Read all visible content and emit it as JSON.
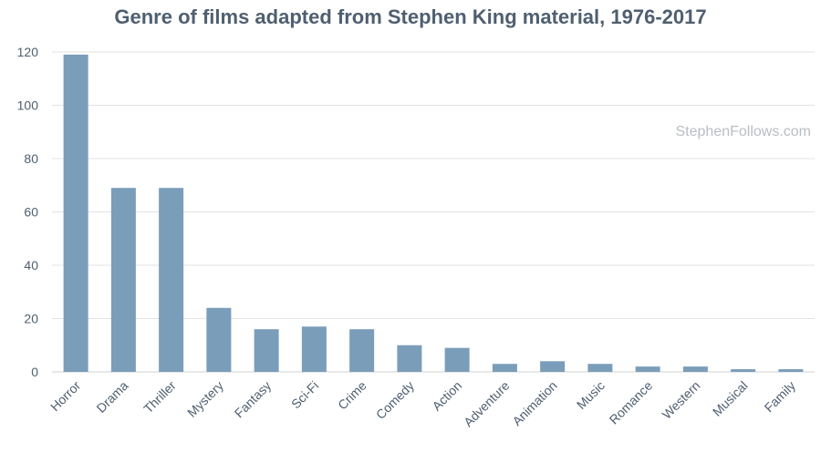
{
  "chart_data": {
    "type": "bar",
    "title": "Genre of films adapted from Stephen King material, 1976-2017",
    "watermark": "StephenFollows.com",
    "xlabel": "",
    "ylabel": "",
    "ylim": [
      0,
      120
    ],
    "yticks": [
      0,
      20,
      40,
      60,
      80,
      100,
      120
    ],
    "grid": true,
    "legend": "none",
    "bar_color": "#7a9dba",
    "categories": [
      "Horror",
      "Drama",
      "Thriller",
      "Mystery",
      "Fantasy",
      "Sci-Fi",
      "Crime",
      "Comedy",
      "Action",
      "Adventure",
      "Animation",
      "Music",
      "Romance",
      "Western",
      "Musical",
      "Family"
    ],
    "values": [
      119,
      69,
      69,
      24,
      16,
      17,
      16,
      10,
      9,
      3,
      4,
      3,
      2,
      2,
      1,
      1
    ]
  }
}
